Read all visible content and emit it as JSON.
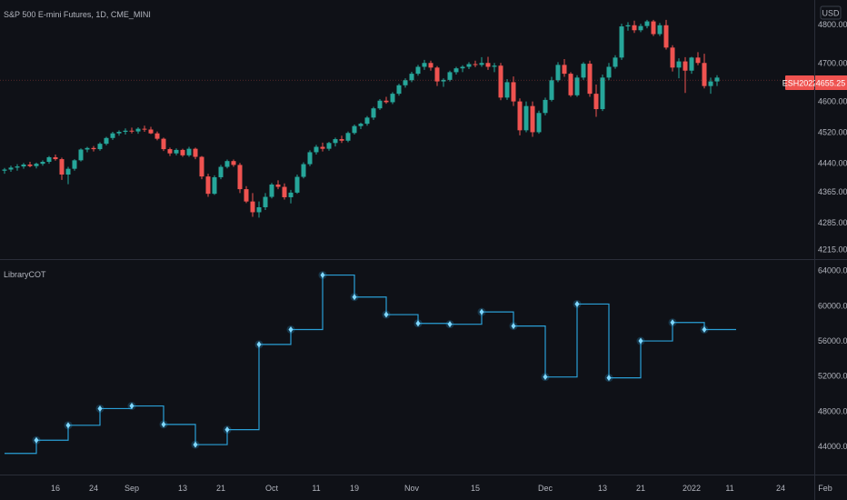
{
  "header": {
    "title": "S&P 500 E-mini Futures, 1D, CME_MINI",
    "currency": "USD"
  },
  "indicator": {
    "name": "LibraryCOT"
  },
  "price_label": {
    "symbol": "ESH2022",
    "value": "4655.25"
  },
  "colors": {
    "background": "#0f1117",
    "up": "#26a69a",
    "down": "#ef5350",
    "cot_line": "#2a9fd6",
    "cot_marker": "#7fd8ff",
    "axis_text": "#b2b5be",
    "separator": "#2a2e39"
  },
  "chart_data": [
    {
      "type": "candlestick",
      "title": "S&P 500 E-mini Futures, 1D, CME_MINI",
      "ylim": [
        4195,
        4840
      ],
      "y_ticks": [
        "4800.00",
        "4700.00",
        "4600.00",
        "4520.00",
        "4440.00",
        "4365.00",
        "4285.00",
        "4215.00"
      ],
      "y_tick_values": [
        4800,
        4700,
        4600,
        4520,
        4440,
        4365,
        4285,
        4215
      ],
      "last_price": 4655.25,
      "candles": [
        [
          4420,
          4427,
          4412,
          4423
        ],
        [
          4423,
          4433,
          4417,
          4428
        ],
        [
          4428,
          4437,
          4420,
          4431
        ],
        [
          4431,
          4440,
          4425,
          4436
        ],
        [
          4436,
          4443,
          4429,
          4432
        ],
        [
          4432,
          4441,
          4426,
          4438
        ],
        [
          4438,
          4447,
          4433,
          4443
        ],
        [
          4443,
          4458,
          4438,
          4455
        ],
        [
          4455,
          4462,
          4446,
          4450
        ],
        [
          4450,
          4454,
          4396,
          4410
        ],
        [
          4410,
          4430,
          4385,
          4425
        ],
        [
          4425,
          4450,
          4420,
          4447
        ],
        [
          4447,
          4478,
          4444,
          4475
        ],
        [
          4475,
          4482,
          4468,
          4479
        ],
        [
          4479,
          4484,
          4470,
          4476
        ],
        [
          4476,
          4494,
          4472,
          4490
        ],
        [
          4490,
          4508,
          4486,
          4505
        ],
        [
          4505,
          4521,
          4500,
          4517
        ],
        [
          4517,
          4525,
          4511,
          4521
        ],
        [
          4521,
          4530,
          4514,
          4524
        ],
        [
          4524,
          4532,
          4517,
          4522
        ],
        [
          4522,
          4533,
          4516,
          4529
        ],
        [
          4529,
          4537,
          4521,
          4527
        ],
        [
          4527,
          4534,
          4515,
          4517
        ],
        [
          4517,
          4522,
          4499,
          4503
        ],
        [
          4503,
          4506,
          4471,
          4476
        ],
        [
          4476,
          4480,
          4458,
          4465
        ],
        [
          4465,
          4478,
          4460,
          4474
        ],
        [
          4474,
          4477,
          4456,
          4460
        ],
        [
          4460,
          4482,
          4456,
          4477
        ],
        [
          4477,
          4480,
          4450,
          4456
        ],
        [
          4456,
          4458,
          4398,
          4405
        ],
        [
          4405,
          4412,
          4352,
          4360
        ],
        [
          4360,
          4408,
          4357,
          4403
        ],
        [
          4403,
          4435,
          4398,
          4430
        ],
        [
          4430,
          4449,
          4426,
          4445
        ],
        [
          4445,
          4449,
          4430,
          4435
        ],
        [
          4435,
          4440,
          4362,
          4372
        ],
        [
          4372,
          4380,
          4336,
          4340
        ],
        [
          4340,
          4362,
          4300,
          4312
        ],
        [
          4312,
          4340,
          4298,
          4325
        ],
        [
          4325,
          4362,
          4318,
          4352
        ],
        [
          4352,
          4388,
          4348,
          4384
        ],
        [
          4384,
          4395,
          4372,
          4378
        ],
        [
          4378,
          4387,
          4345,
          4351
        ],
        [
          4351,
          4370,
          4335,
          4363
        ],
        [
          4363,
          4410,
          4360,
          4404
        ],
        [
          4404,
          4442,
          4400,
          4437
        ],
        [
          4437,
          4473,
          4432,
          4468
        ],
        [
          4468,
          4487,
          4462,
          4482
        ],
        [
          4482,
          4493,
          4470,
          4477
        ],
        [
          4477,
          4495,
          4472,
          4492
        ],
        [
          4492,
          4506,
          4483,
          4502
        ],
        [
          4502,
          4511,
          4492,
          4498
        ],
        [
          4498,
          4522,
          4494,
          4518
        ],
        [
          4518,
          4540,
          4514,
          4536
        ],
        [
          4536,
          4545,
          4528,
          4542
        ],
        [
          4542,
          4562,
          4537,
          4558
        ],
        [
          4558,
          4586,
          4552,
          4582
        ],
        [
          4582,
          4606,
          4578,
          4602
        ],
        [
          4602,
          4612,
          4594,
          4598
        ],
        [
          4598,
          4624,
          4593,
          4620
        ],
        [
          4620,
          4646,
          4615,
          4642
        ],
        [
          4642,
          4660,
          4636,
          4655
        ],
        [
          4655,
          4677,
          4650,
          4672
        ],
        [
          4672,
          4695,
          4667,
          4690
        ],
        [
          4690,
          4708,
          4682,
          4700
        ],
        [
          4700,
          4706,
          4680,
          4688
        ],
        [
          4688,
          4692,
          4640,
          4652
        ],
        [
          4652,
          4660,
          4638,
          4656
        ],
        [
          4656,
          4680,
          4652,
          4676
        ],
        [
          4676,
          4690,
          4670,
          4686
        ],
        [
          4686,
          4694,
          4676,
          4690
        ],
        [
          4690,
          4702,
          4684,
          4697
        ],
        [
          4697,
          4706,
          4689,
          4695
        ],
        [
          4695,
          4715,
          4690,
          4700
        ],
        [
          4700,
          4716,
          4682,
          4690
        ],
        [
          4690,
          4700,
          4676,
          4693
        ],
        [
          4693,
          4700,
          4603,
          4610
        ],
        [
          4610,
          4658,
          4604,
          4650
        ],
        [
          4650,
          4665,
          4588,
          4600
        ],
        [
          4600,
          4608,
          4512,
          4525
        ],
        [
          4525,
          4600,
          4520,
          4588
        ],
        [
          4588,
          4600,
          4508,
          4520
        ],
        [
          4520,
          4576,
          4516,
          4570
        ],
        [
          4570,
          4610,
          4564,
          4604
        ],
        [
          4604,
          4664,
          4600,
          4655
        ],
        [
          4655,
          4702,
          4650,
          4695
        ],
        [
          4695,
          4710,
          4664,
          4672
        ],
        [
          4672,
          4676,
          4612,
          4616
        ],
        [
          4616,
          4668,
          4612,
          4662
        ],
        [
          4662,
          4702,
          4656,
          4698
        ],
        [
          4698,
          4706,
          4612,
          4620
        ],
        [
          4620,
          4644,
          4560,
          4580
        ],
        [
          4580,
          4670,
          4575,
          4662
        ],
        [
          4662,
          4700,
          4655,
          4690
        ],
        [
          4690,
          4720,
          4685,
          4714
        ],
        [
          4714,
          4802,
          4708,
          4795
        ],
        [
          4795,
          4806,
          4784,
          4798
        ],
        [
          4798,
          4810,
          4778,
          4785
        ],
        [
          4785,
          4802,
          4780,
          4796
        ],
        [
          4796,
          4812,
          4790,
          4808
        ],
        [
          4808,
          4812,
          4770,
          4775
        ],
        [
          4775,
          4804,
          4770,
          4798
        ],
        [
          4798,
          4812,
          4735,
          4740
        ],
        [
          4740,
          4746,
          4678,
          4688
        ],
        [
          4688,
          4712,
          4660,
          4704
        ],
        [
          4704,
          4715,
          4622,
          4680
        ],
        [
          4680,
          4716,
          4672,
          4714
        ],
        [
          4714,
          4728,
          4694,
          4700
        ],
        [
          4700,
          4724,
          4634,
          4640
        ],
        [
          4640,
          4662,
          4620,
          4652
        ],
        [
          4652,
          4668,
          4640,
          4662
        ]
      ]
    },
    {
      "type": "line",
      "title": "LibraryCOT",
      "step": true,
      "ylim": [
        41000,
        64800
      ],
      "y_ticks": [
        "64000.00",
        "60000.00",
        "56000.00",
        "52000.00",
        "48000.00",
        "44000.00"
      ],
      "y_tick_values": [
        64000,
        60000,
        56000,
        52000,
        48000,
        44000
      ],
      "x": [
        0,
        5,
        10,
        15,
        20,
        25,
        30,
        35,
        40,
        45,
        50,
        55,
        60,
        65,
        70,
        75,
        80,
        85,
        90,
        95,
        100,
        105,
        110,
        114,
        115
      ],
      "values": [
        43200,
        44700,
        46400,
        48300,
        48600,
        46500,
        44200,
        45900,
        55600,
        57300,
        63500,
        61000,
        59000,
        58000,
        57900,
        59300,
        57700,
        51900,
        60200,
        51800,
        56000,
        58100,
        57300,
        57300,
        57300
      ],
      "markers": [
        false,
        true,
        true,
        true,
        true,
        true,
        true,
        true,
        true,
        true,
        true,
        true,
        true,
        true,
        true,
        true,
        true,
        true,
        true,
        true,
        true,
        true,
        true,
        false,
        false
      ],
      "x_ticks": [
        {
          "i": 8,
          "label": "16"
        },
        {
          "i": 14,
          "label": "24"
        },
        {
          "i": 20,
          "label": "Sep"
        },
        {
          "i": 28,
          "label": "13"
        },
        {
          "i": 34,
          "label": "21"
        },
        {
          "i": 42,
          "label": "Oct"
        },
        {
          "i": 49,
          "label": "11"
        },
        {
          "i": 55,
          "label": "19"
        },
        {
          "i": 64,
          "label": "Nov"
        },
        {
          "i": 74,
          "label": "15"
        },
        {
          "i": 85,
          "label": "Dec"
        },
        {
          "i": 94,
          "label": "13"
        },
        {
          "i": 100,
          "label": "21"
        },
        {
          "i": 108,
          "label": "2022"
        },
        {
          "i": 114,
          "label": "11"
        },
        {
          "i": 122,
          "label": "24"
        },
        {
          "i": 129,
          "label": "Feb"
        }
      ]
    }
  ]
}
